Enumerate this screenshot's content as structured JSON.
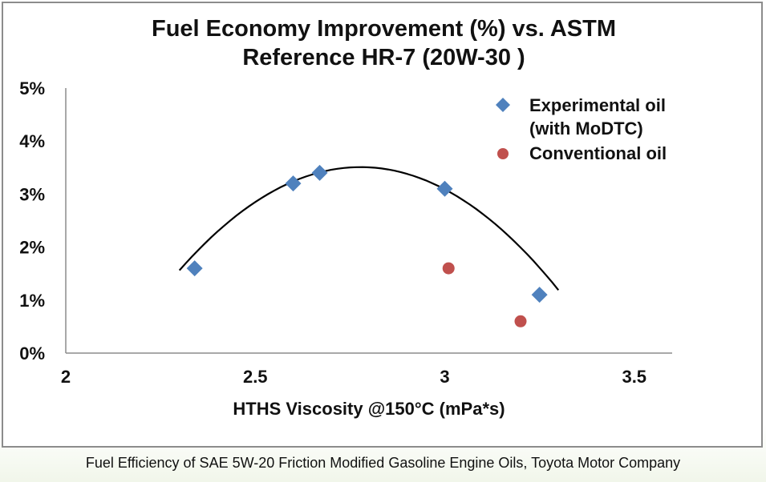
{
  "caption": "Fuel Efficiency of SAE 5W-20 Friction Modified Gasoline Engine Oils, Toyota Motor Company",
  "chart_data": {
    "type": "scatter",
    "title_lines": [
      "Fuel Economy Improvement (%)  vs. ASTM",
      "Reference HR-7 (20W-30 )"
    ],
    "xlabel": "HTHS Viscosity @150°C (mPa*s)",
    "ylabel": "",
    "xlim": [
      2,
      3.6
    ],
    "ylim": [
      0,
      5
    ],
    "x_ticks": [
      "2",
      "2.5",
      "3",
      "3.5"
    ],
    "x_tick_values": [
      2,
      2.5,
      3,
      3.5
    ],
    "y_ticks": [
      "0%",
      "1%",
      "2%",
      "3%",
      "4%",
      "5%"
    ],
    "y_tick_values": [
      0,
      1,
      2,
      3,
      4,
      5
    ],
    "grid": false,
    "legend_position": "top-right",
    "series": [
      {
        "name_lines": [
          "Experimental oil",
          "(with MoDTC)"
        ],
        "marker": "diamond",
        "color": "#4f81bd",
        "x": [
          2.34,
          2.6,
          2.67,
          3.0,
          3.25
        ],
        "y": [
          1.6,
          3.2,
          3.4,
          3.1,
          1.1
        ]
      },
      {
        "name_lines": [
          "Conventional oil"
        ],
        "marker": "circle",
        "color": "#c0504d",
        "x": [
          3.01,
          3.2
        ],
        "y": [
          1.6,
          0.6
        ]
      }
    ],
    "trendline": {
      "type": "polynomial-2",
      "series": "Experimental oil",
      "color": "#000000",
      "x_range": [
        2.3,
        3.3
      ],
      "coefficients": [
        -8.52,
        47.34,
        -62.25
      ]
    }
  }
}
